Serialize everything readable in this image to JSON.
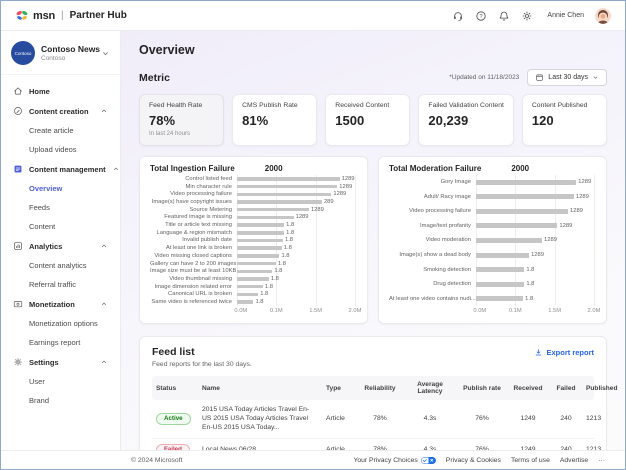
{
  "topbar": {
    "logo": {
      "msn": "msn",
      "separator": "|",
      "product": "Partner Hub"
    },
    "icons": [
      {
        "name": "support-icon"
      },
      {
        "name": "help-icon"
      },
      {
        "name": "notifications-icon"
      },
      {
        "name": "settings-icon"
      }
    ],
    "user": {
      "name": "Annie Chen"
    }
  },
  "sidebar": {
    "org": {
      "avatar_text": "Contoso",
      "name": "Contoso News",
      "subtitle": "Contoso"
    },
    "items": [
      {
        "label": "Home",
        "kind": "top",
        "icon": "home"
      },
      {
        "label": "Content creation",
        "kind": "section",
        "icon": "creation"
      },
      {
        "label": "Create article",
        "kind": "child"
      },
      {
        "label": "Upload videos",
        "kind": "child"
      },
      {
        "label": "Content management",
        "kind": "section",
        "icon": "management"
      },
      {
        "label": "Overview",
        "kind": "child",
        "active": true
      },
      {
        "label": "Feeds",
        "kind": "child"
      },
      {
        "label": "Content",
        "kind": "child"
      },
      {
        "label": "Analytics",
        "kind": "section",
        "icon": "analytics"
      },
      {
        "label": "Content analytics",
        "kind": "child"
      },
      {
        "label": "Referral traffic",
        "kind": "child"
      },
      {
        "label": "Monetization",
        "kind": "section",
        "icon": "monetization"
      },
      {
        "label": "Monetization options",
        "kind": "child"
      },
      {
        "label": "Earnings report",
        "kind": "child"
      },
      {
        "label": "Settings",
        "kind": "section",
        "icon": "settings"
      },
      {
        "label": "User",
        "kind": "child"
      },
      {
        "label": "Brand",
        "kind": "child"
      }
    ]
  },
  "page": {
    "title": "Overview"
  },
  "metric": {
    "section_title": "Metric",
    "updated_text": "*Updated on 11/18/2023",
    "range_button": "Last 30 days",
    "cards": [
      {
        "label": "Feed Health Rate",
        "value": "78%",
        "note": "In last 24 hours",
        "highlighted": true
      },
      {
        "label": "CMS Publish Rate",
        "value": "81%"
      },
      {
        "label": "Received Content",
        "value": "1500"
      },
      {
        "label": "Failed Validation Content",
        "value": "20,239"
      },
      {
        "label": "Content Published",
        "value": "120"
      }
    ]
  },
  "chart_data": [
    {
      "type": "bar",
      "orientation": "horizontal",
      "title": "Total Ingestion Failure",
      "total": "2000",
      "x_ticks": [
        "0.0M",
        "0.1M",
        "1.5M",
        "2.0M"
      ],
      "grid": true,
      "bar_color": "#c6c6c6",
      "bars": [
        {
          "label": "Control listed feed",
          "value": "1289",
          "pct": 87
        },
        {
          "label": "Min character rule",
          "value": "1289",
          "pct": 85
        },
        {
          "label": "Video processing failure",
          "value": "1289",
          "pct": 80
        },
        {
          "label": "Image(s) have copyright issues",
          "value": "289",
          "pct": 72
        },
        {
          "label": "Source Metering",
          "value": "1289",
          "pct": 61
        },
        {
          "label": "Featured image is missing",
          "value": "1289",
          "pct": 48
        },
        {
          "label": "Title or article text missing",
          "value": "1.8",
          "pct": 40
        },
        {
          "label": "Language & region mismatch",
          "value": "1.8",
          "pct": 40
        },
        {
          "label": "Invalid publish date",
          "value": "1.8",
          "pct": 39
        },
        {
          "label": "At least one link is broken",
          "value": "1.8",
          "pct": 38
        },
        {
          "label": "Video missing closed captions",
          "value": "1.8",
          "pct": 36
        },
        {
          "label": "Gallery can have 2 to 200 images",
          "value": "1.8",
          "pct": 33
        },
        {
          "label": "Image size must be at least 10KB",
          "value": "1.8",
          "pct": 30
        },
        {
          "label": "Video thumbnail missing",
          "value": "1.8",
          "pct": 27
        },
        {
          "label": "Image dimension related error",
          "value": "1.8",
          "pct": 22
        },
        {
          "label": "Canonical URL is broken",
          "value": "1.8",
          "pct": 18
        },
        {
          "label": "Same video is referenced twice",
          "value": "1.8",
          "pct": 14
        }
      ]
    },
    {
      "type": "bar",
      "orientation": "horizontal",
      "title": "Total Moderation Failure",
      "total": "2000",
      "x_ticks": [
        "0.0M",
        "0.1M",
        "1.5M",
        "2.0M"
      ],
      "grid": true,
      "bar_color": "#c6c6c6",
      "bars": [
        {
          "label": "Gory Image",
          "value": "1289",
          "pct": 85
        },
        {
          "label": "Adult/ Racy image",
          "value": "1289",
          "pct": 83
        },
        {
          "label": "Video processing failure",
          "value": "1289",
          "pct": 78
        },
        {
          "label": "Image/text profanity",
          "value": "1289",
          "pct": 69
        },
        {
          "label": "Video moderation",
          "value": "1289",
          "pct": 56
        },
        {
          "label": "Image(s) show a dead body",
          "value": "1289",
          "pct": 45
        },
        {
          "label": "Smoking detection",
          "value": "1.8",
          "pct": 41
        },
        {
          "label": "Drug detection",
          "value": "1.8",
          "pct": 41
        },
        {
          "label": "At least one video contains nudi...",
          "value": "1.8",
          "pct": 40
        }
      ]
    }
  ],
  "feed_list": {
    "title": "Feed list",
    "subtitle": "Feed reports for the last 30 days.",
    "export_label": "Export report",
    "columns": [
      "Status",
      "Name",
      "Type",
      "Reliability",
      "Average Latency",
      "Publish rate",
      "Received",
      "Failed",
      "Published"
    ],
    "rows": [
      {
        "status": "Active",
        "status_kind": "active",
        "name": "2015 USA Today Articles Travel En-US 2015 USA Today Articles Travel En-US 2015 USA Today...",
        "type": "Article",
        "reliability": "78%",
        "average_latency": "4.3s",
        "publish_rate": "76%",
        "received": "1249",
        "failed": "240",
        "published": "1213"
      },
      {
        "status": "Failed",
        "status_kind": "failed",
        "name": "Local News 06/28",
        "type": "Article",
        "reliability": "78%",
        "average_latency": "4.3s",
        "publish_rate": "76%",
        "received": "1249",
        "failed": "240",
        "published": "1213"
      }
    ]
  },
  "footer": {
    "copyright": "© 2024 Microsoft",
    "links": [
      {
        "label": "Your Privacy Choices",
        "icon": "privacy-choices-icon"
      },
      {
        "label": "Privacy & Cookies"
      },
      {
        "label": "Terms of use"
      },
      {
        "label": "Advertise"
      },
      {
        "label": "···"
      }
    ]
  },
  "colors": {
    "accent": "#4f5fd9",
    "link_blue": "#2764e7",
    "active_green": "#107c10",
    "failed_red": "#c4314b",
    "bar_gray": "#c6c6c6"
  }
}
